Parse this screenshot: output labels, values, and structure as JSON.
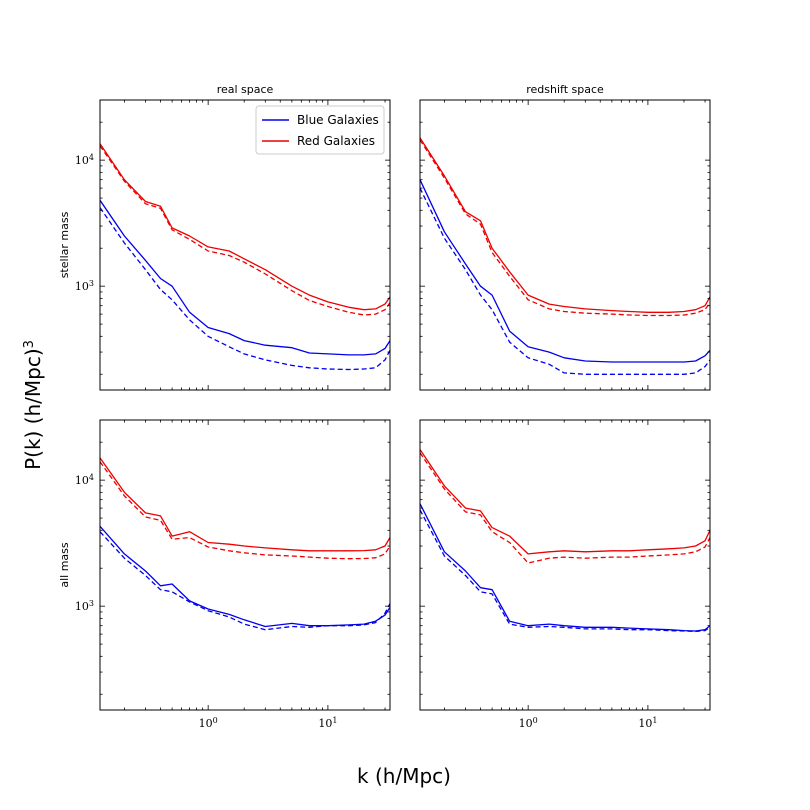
{
  "chart_data": {
    "type": "line",
    "xlabel": "k (h/Mpc)",
    "ylabel": "P(k) (h/Mpc)",
    "ylabel_sup": "3",
    "xscale": "log",
    "yscale": "log",
    "xlim": [
      0.125,
      33
    ],
    "ylim": [
      150,
      30000
    ],
    "x_ticks": [
      1,
      10
    ],
    "x_tick_labels": [
      [
        "10",
        "0"
      ],
      [
        "10",
        "1"
      ]
    ],
    "y_ticks": [
      1000,
      10000
    ],
    "y_tick_labels": [
      [
        "10",
        "3"
      ],
      [
        "10",
        "4"
      ]
    ],
    "column_titles": [
      "real space",
      "redshift space"
    ],
    "row_labels": [
      "stellar mass",
      "all mass"
    ],
    "legend": {
      "placement": "top-right",
      "entries": [
        {
          "label": "Blue Galaxies",
          "color": "#0000ee"
        },
        {
          "label": "Red Galaxies",
          "color": "#ee0000"
        }
      ]
    },
    "x": [
      0.125,
      0.2,
      0.3,
      0.4,
      0.5,
      0.7,
      1.0,
      1.5,
      2,
      3,
      5,
      7,
      10,
      15,
      20,
      25,
      30,
      33
    ],
    "panels": [
      {
        "row": "stellar mass",
        "column": "real space",
        "series": [
          {
            "color": "blue",
            "style": "solid",
            "values": [
              4800,
              2500,
              1600,
              1150,
              1000,
              620,
              470,
              420,
              370,
              340,
              325,
              295,
              290,
              285,
              285,
              290,
              320,
              370
            ]
          },
          {
            "color": "blue",
            "style": "dashed",
            "values": [
              4200,
              2200,
              1350,
              940,
              780,
              540,
              400,
              330,
              290,
              260,
              235,
              225,
              220,
              218,
              220,
              225,
              260,
              310
            ]
          },
          {
            "color": "red",
            "style": "solid",
            "values": [
              13500,
              7000,
              4700,
              4300,
              2900,
              2500,
              2050,
              1900,
              1650,
              1350,
              1000,
              850,
              750,
              680,
              650,
              660,
              720,
              820
            ]
          },
          {
            "color": "red",
            "style": "dashed",
            "values": [
              13000,
              6800,
              4500,
              4150,
              2800,
              2350,
              1900,
              1750,
              1550,
              1250,
              920,
              770,
              690,
              620,
              590,
              600,
              650,
              740
            ]
          }
        ]
      },
      {
        "row": "stellar mass",
        "column": "redshift space",
        "series": [
          {
            "color": "blue",
            "style": "solid",
            "values": [
              7000,
              2700,
              1500,
              1000,
              850,
              440,
              330,
              300,
              270,
              255,
              250,
              250,
              250,
              250,
              250,
              255,
              280,
              310
            ]
          },
          {
            "color": "blue",
            "style": "dashed",
            "values": [
              6000,
              2400,
              1350,
              850,
              650,
              360,
              270,
              240,
              205,
              200,
              200,
              200,
              200,
              200,
              200,
              205,
              230,
              260
            ]
          },
          {
            "color": "red",
            "style": "solid",
            "values": [
              15000,
              7500,
              3900,
              3300,
              2000,
              1300,
              850,
              720,
              690,
              660,
              640,
              630,
              620,
              620,
              630,
              650,
              700,
              820
            ]
          },
          {
            "color": "red",
            "style": "dashed",
            "values": [
              14500,
              7200,
              3750,
              3100,
              1850,
              1200,
              780,
              660,
              630,
              610,
              600,
              590,
              585,
              585,
              590,
              610,
              650,
              740
            ]
          }
        ]
      },
      {
        "row": "all mass",
        "column": "real space",
        "series": [
          {
            "color": "blue",
            "style": "solid",
            "values": [
              4300,
              2600,
              1900,
              1450,
              1500,
              1100,
              950,
              860,
              780,
              690,
              730,
              700,
              700,
              710,
              720,
              760,
              850,
              980
            ]
          },
          {
            "color": "blue",
            "style": "dashed",
            "values": [
              3900,
              2400,
              1750,
              1350,
              1300,
              1080,
              920,
              820,
              720,
              650,
              690,
              680,
              700,
              700,
              710,
              740,
              880,
              1050
            ]
          },
          {
            "color": "red",
            "style": "solid",
            "values": [
              15000,
              8000,
              5500,
              5200,
              3600,
              3900,
              3200,
              3100,
              3000,
              2900,
              2800,
              2750,
              2750,
              2750,
              2760,
              2800,
              3000,
              3500
            ]
          },
          {
            "color": "red",
            "style": "dashed",
            "values": [
              14000,
              7500,
              5100,
              4800,
              3400,
              3500,
              2950,
              2750,
              2650,
              2550,
              2500,
              2450,
              2400,
              2380,
              2390,
              2420,
              2600,
              3000
            ]
          }
        ]
      },
      {
        "row": "all mass",
        "column": "redshift space",
        "series": [
          {
            "color": "blue",
            "style": "solid",
            "values": [
              6500,
              2700,
              1900,
              1400,
              1350,
              760,
              700,
              720,
              700,
              680,
              680,
              670,
              660,
              650,
              640,
              635,
              650,
              700
            ]
          },
          {
            "color": "blue",
            "style": "dashed",
            "values": [
              5800,
              2500,
              1750,
              1300,
              1250,
              720,
              680,
              690,
              680,
              660,
              660,
              650,
              650,
              640,
              635,
              630,
              640,
              680
            ]
          },
          {
            "color": "red",
            "style": "solid",
            "values": [
              17500,
              9000,
              6000,
              5700,
              4200,
              3600,
              2600,
              2700,
              2750,
              2700,
              2750,
              2750,
              2800,
              2850,
              2900,
              3000,
              3300,
              4000
            ]
          },
          {
            "color": "red",
            "style": "dashed",
            "values": [
              16500,
              8500,
              5600,
              5300,
              3900,
              3200,
              2200,
              2400,
              2450,
              2400,
              2450,
              2450,
              2500,
              2550,
              2600,
              2700,
              2950,
              3500
            ]
          }
        ]
      }
    ]
  }
}
